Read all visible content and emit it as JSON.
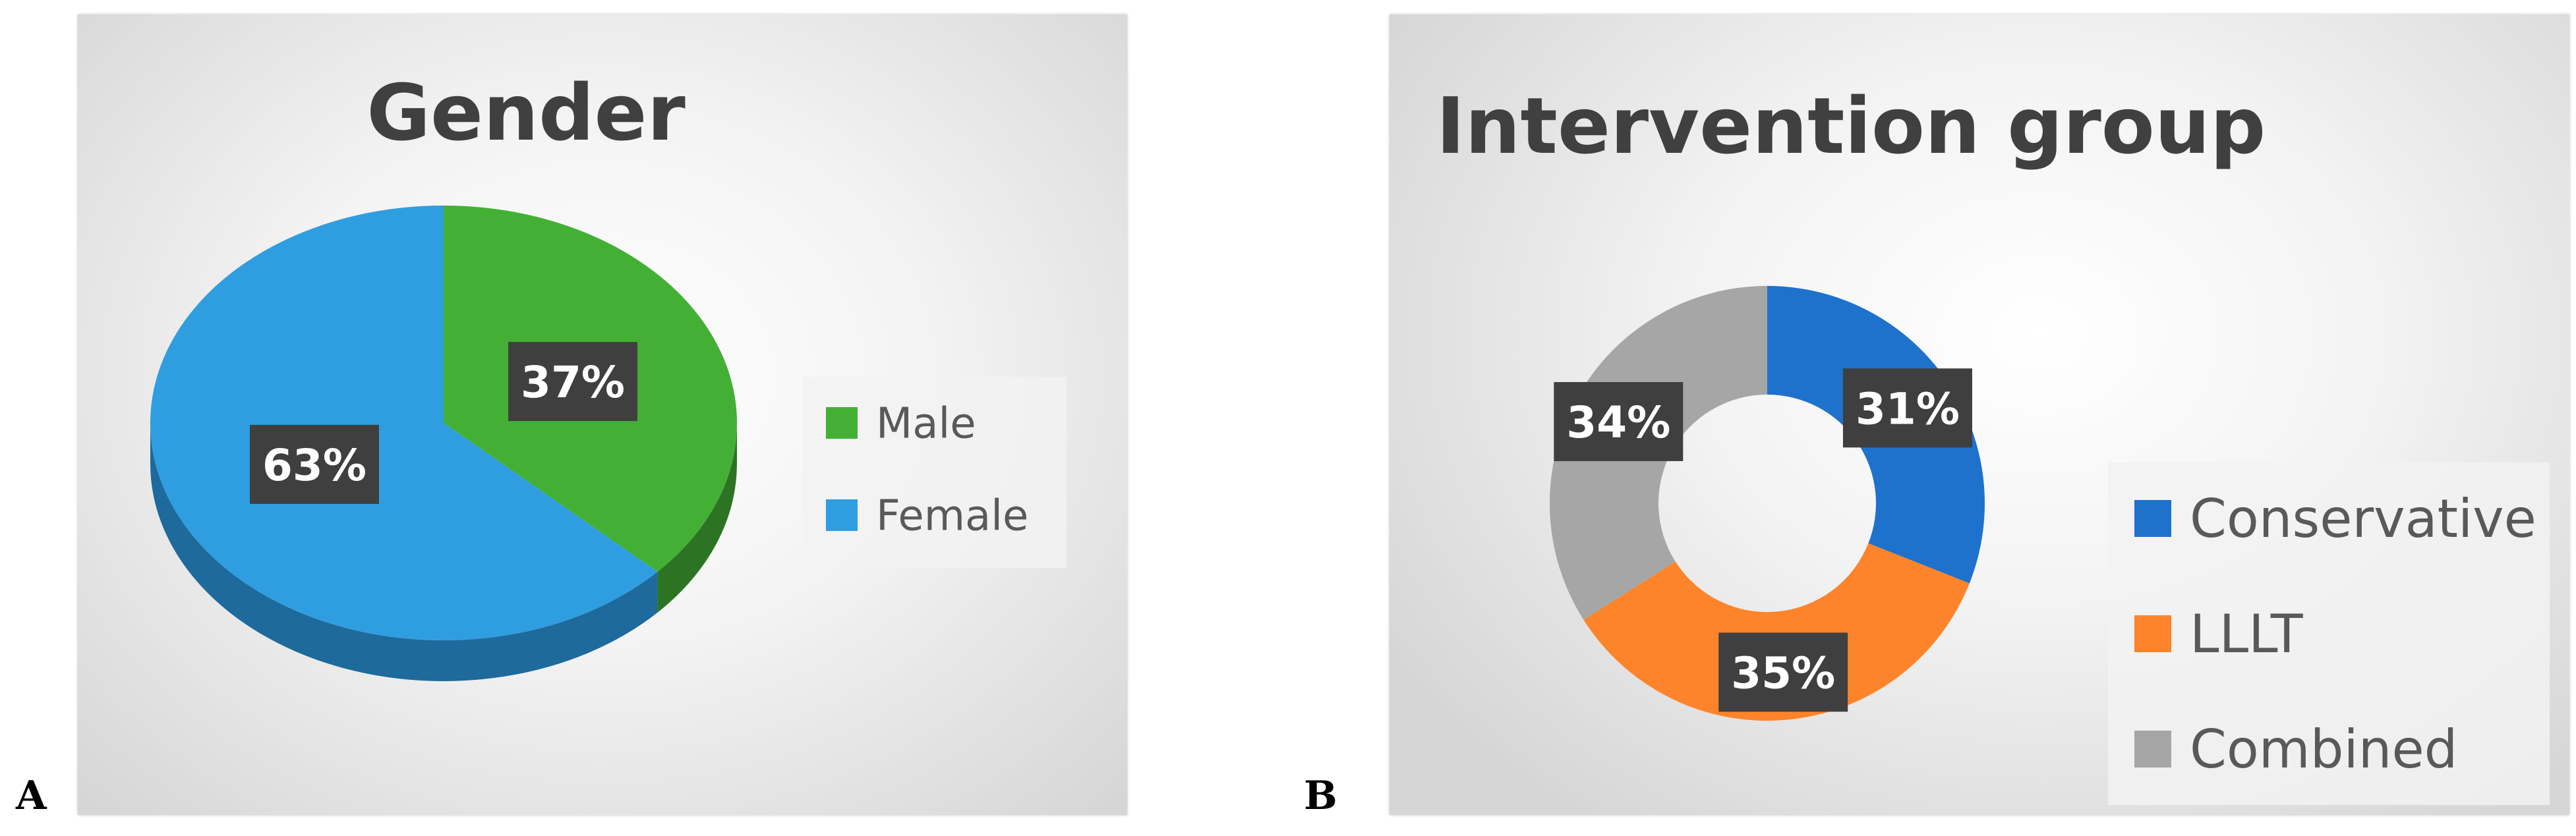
{
  "panel_labels": [
    "A",
    "B"
  ],
  "chart_data": [
    {
      "type": "pie",
      "title": "Gender",
      "categories": [
        "Male",
        "Female"
      ],
      "values": [
        37,
        63
      ],
      "data_labels": [
        "37%",
        "63%"
      ],
      "colors": [
        "#43b035",
        "#2f9ee0"
      ],
      "side_colors": [
        "#2c7424",
        "#1e6a9c"
      ],
      "legend_position": "right"
    },
    {
      "type": "pie",
      "subtype": "donut",
      "title": "Intervention group",
      "categories": [
        "Conservative",
        "LLLT",
        "Combined"
      ],
      "values": [
        31,
        35,
        34
      ],
      "data_labels": [
        "31%",
        "35%",
        "34%"
      ],
      "colors": [
        "#1e72cc",
        "#fd842a",
        "#a6a6a6"
      ],
      "legend_position": "bottom-right"
    }
  ]
}
